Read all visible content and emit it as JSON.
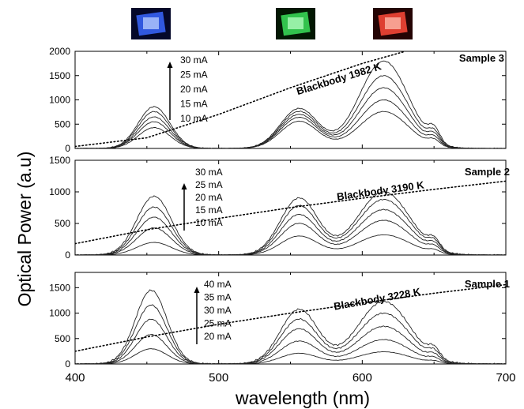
{
  "led_photos": [
    {
      "name": "blue-led-photo",
      "glow": "#3a66ff",
      "core": "#bcd0ff",
      "bg": "#05082a"
    },
    {
      "name": "green-led-photo",
      "glow": "#3be05a",
      "core": "#b8ffc4",
      "bg": "#031803"
    },
    {
      "name": "red-led-photo",
      "glow": "#ff4a3a",
      "core": "#ffc0b0",
      "bg": "#240404"
    }
  ],
  "colors": {
    "curve": "#222222",
    "axis": "#000000",
    "blackbody": "#000000"
  },
  "chart_data": [
    {
      "type": "line",
      "label": "Sample 3",
      "ylim": [
        0,
        2000
      ],
      "yticks": [
        0,
        500,
        1000,
        1500,
        2000
      ],
      "currents": [
        "30 mA",
        "25 mA",
        "20 mA",
        "15 mA",
        "10 mA"
      ],
      "blackbody_label": "Blackbody 1982 K",
      "blackbody": {
        "x": [
          400,
          450,
          500,
          550,
          600,
          630
        ],
        "y": [
          40,
          220,
          700,
          1250,
          1750,
          2000
        ]
      },
      "peaks": {
        "x": [
          455,
          556,
          615
        ],
        "widths": [
          11,
          13,
          17
        ]
      },
      "series": [
        {
          "name": "10 mA",
          "peaks": [
            430,
            560,
            760
          ]
        },
        {
          "name": "15 mA",
          "peaks": [
            550,
            640,
            1000
          ]
        },
        {
          "name": "20 mA",
          "peaks": [
            650,
            700,
            1250
          ]
        },
        {
          "name": "25 mA",
          "peaks": [
            760,
            760,
            1500
          ]
        },
        {
          "name": "30 mA",
          "peaks": [
            860,
            820,
            1800
          ]
        }
      ]
    },
    {
      "type": "line",
      "label": "Sample 2",
      "ylim": [
        0,
        1500
      ],
      "yticks": [
        0,
        500,
        1000,
        1500
      ],
      "currents": [
        "30 mA",
        "25 mA",
        "20 mA",
        "15 mA",
        "10 mA"
      ],
      "blackbody_label": "Blackbody 3190 K",
      "blackbody": {
        "x": [
          400,
          450,
          500,
          550,
          600,
          650,
          700
        ],
        "y": [
          180,
          400,
          580,
          750,
          900,
          1040,
          1170
        ]
      },
      "peaks": {
        "x": [
          455,
          556,
          615
        ],
        "widths": [
          12,
          13,
          18
        ]
      },
      "series": [
        {
          "name": "10 mA",
          "peaks": [
            200,
            300,
            320
          ]
        },
        {
          "name": "15 mA",
          "peaks": [
            430,
            500,
            550
          ]
        },
        {
          "name": "20 mA",
          "peaks": [
            600,
            640,
            720
          ]
        },
        {
          "name": "25 mA",
          "peaks": [
            760,
            780,
            880
          ]
        },
        {
          "name": "30 mA",
          "peaks": [
            930,
            900,
            1000
          ]
        }
      ]
    },
    {
      "type": "line",
      "label": "Sample 1",
      "ylim": [
        0,
        1800
      ],
      "yticks": [
        0,
        500,
        1000,
        1500
      ],
      "currents": [
        "40 mA",
        "35 mA",
        "30 mA",
        "25 mA",
        "20 mA"
      ],
      "blackbody_label": "Blackbody 3228 K",
      "blackbody": {
        "x": [
          400,
          450,
          500,
          550,
          600,
          650,
          700
        ],
        "y": [
          250,
          530,
          780,
          1000,
          1200,
          1390,
          1560
        ]
      },
      "peaks": {
        "x": [
          453,
          556,
          615
        ],
        "widths": [
          11,
          13,
          18
        ]
      },
      "series": [
        {
          "name": "20 mA",
          "peaks": [
            300,
            210,
            240
          ]
        },
        {
          "name": "25 mA",
          "peaks": [
            580,
            450,
            480
          ]
        },
        {
          "name": "30 mA",
          "peaks": [
            880,
            690,
            740
          ]
        },
        {
          "name": "35 mA",
          "peaks": [
            1160,
            880,
            1000
          ]
        },
        {
          "name": "40 mA",
          "peaks": [
            1450,
            1070,
            1230
          ]
        }
      ]
    }
  ],
  "x_axis": {
    "ticks": [
      400,
      500,
      600,
      700
    ],
    "xlim": [
      400,
      700
    ],
    "label": "wavelength (nm)"
  },
  "y_axis": {
    "label": "Optical Power (a.u)"
  }
}
